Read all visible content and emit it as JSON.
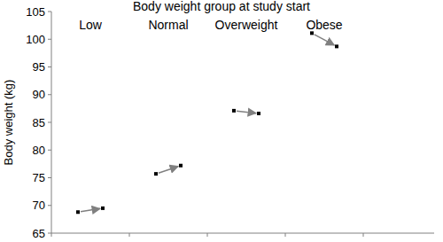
{
  "chart_data": {
    "type": "arrow",
    "title": "Body weight group at study start",
    "y_label": "Body weight (kg)",
    "categories": [
      "Low",
      "Normal",
      "Overweight",
      "Obese"
    ],
    "start": [
      68.8,
      75.7,
      87.1,
      101.1
    ],
    "end": [
      69.5,
      77.2,
      86.6,
      98.7
    ],
    "color": "#808080",
    "marker": "square",
    "grid": false,
    "ylim": [
      65,
      105
    ],
    "yticks": [
      65,
      70,
      75,
      80,
      85,
      90,
      95,
      100,
      105
    ]
  }
}
